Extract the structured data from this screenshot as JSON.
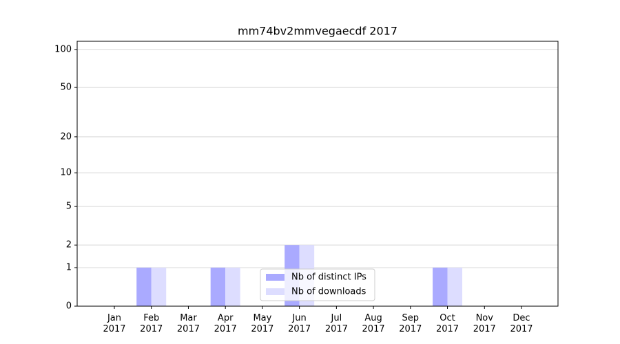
{
  "chart_data": {
    "type": "bar",
    "title": "mm74bv2mmvegaecdf 2017",
    "categories": [
      "Jan\n2017",
      "Feb\n2017",
      "Mar\n2017",
      "Apr\n2017",
      "May\n2017",
      "Jun\n2017",
      "Jul\n2017",
      "Aug\n2017",
      "Sep\n2017",
      "Oct\n2017",
      "Nov\n2017",
      "Dec\n2017"
    ],
    "series": [
      {
        "name": "Nb of distinct IPs",
        "color": "#aaaaff",
        "values": [
          0,
          1,
          0,
          1,
          0,
          2,
          0,
          0,
          0,
          1,
          0,
          0
        ]
      },
      {
        "name": "Nb of downloads",
        "color": "#ddddff",
        "values": [
          0,
          1,
          0,
          1,
          0,
          2,
          0,
          0,
          0,
          1,
          0,
          0
        ]
      }
    ],
    "yscale": "log1p",
    "ylim": [
      0,
      116
    ],
    "yticks": [
      0,
      1,
      2,
      5,
      10,
      20,
      50,
      100
    ],
    "grid": true,
    "legend": "lower center"
  }
}
